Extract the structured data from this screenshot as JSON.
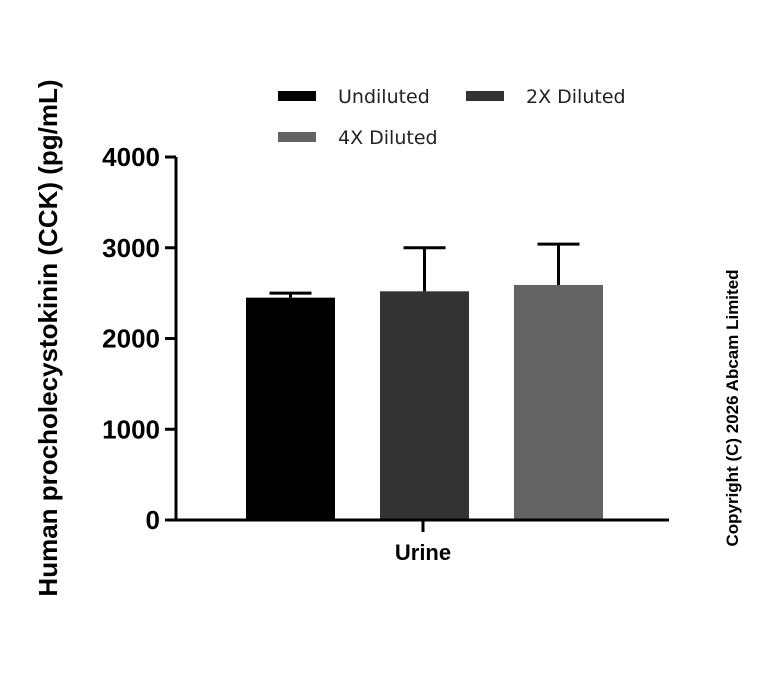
{
  "chart_data": {
    "type": "bar",
    "categories": [
      "Urine"
    ],
    "series": [
      {
        "name": "Undiluted",
        "values": [
          2450
        ],
        "error": [
          50
        ],
        "color": "#000000"
      },
      {
        "name": "2X Diluted",
        "values": [
          2520
        ],
        "error": [
          480
        ],
        "color": "#333333"
      },
      {
        "name": "4X Diluted",
        "values": [
          2590
        ],
        "error": [
          450
        ],
        "color": "#636363"
      }
    ],
    "title": "",
    "xlabel": "",
    "ylabel": "Human procholecystokinin (CCK) (pg/mL)",
    "ylim": [
      0,
      4000
    ],
    "yticks": [
      0,
      1000,
      2000,
      3000,
      4000
    ],
    "grid": false,
    "legend_position": "top"
  },
  "copyright": "Copyright (C) 2026 Abcam Limited"
}
